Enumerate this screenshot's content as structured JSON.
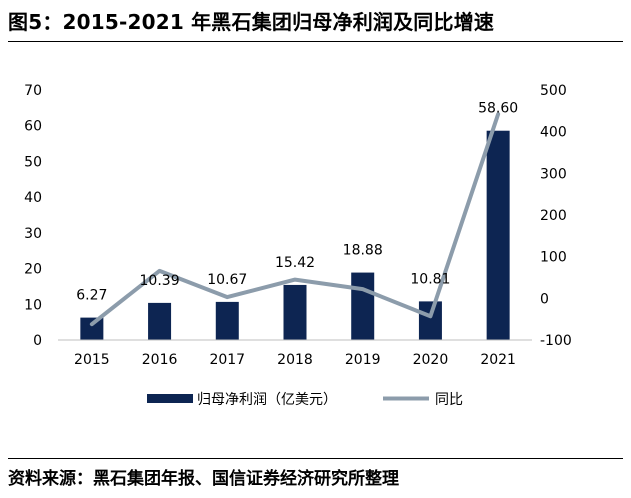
{
  "title": "图5：2015-2021 年黑石集团归母净利润及同比增速",
  "source": "资料来源：黑石集团年报、国信证券经济研究所整理",
  "chart_data": {
    "type": "bar",
    "categories": [
      "2015",
      "2016",
      "2017",
      "2018",
      "2019",
      "2020",
      "2021"
    ],
    "series": [
      {
        "name": "归母净利润（亿美元）",
        "type": "bar",
        "axis": "left",
        "values": [
          6.27,
          10.39,
          10.67,
          15.42,
          18.88,
          10.81,
          58.6
        ],
        "labels": [
          "6.27",
          "10.39",
          "10.67",
          "15.42",
          "18.88",
          "10.81",
          "58.60"
        ],
        "color": "#0d2552"
      },
      {
        "name": "同比",
        "type": "line",
        "axis": "right",
        "values": [
          -62,
          66,
          3,
          45,
          22,
          -43,
          442
        ],
        "color": "#8c9cab"
      }
    ],
    "y_left": {
      "min": 0,
      "max": 70,
      "ticks": [
        "0",
        "10",
        "20",
        "30",
        "40",
        "50",
        "60",
        "70"
      ]
    },
    "y_right": {
      "min": -100,
      "max": 500,
      "ticks": [
        "-100",
        "0",
        "100",
        "200",
        "300",
        "400",
        "500"
      ]
    },
    "grid": false,
    "legend": "bottom"
  }
}
